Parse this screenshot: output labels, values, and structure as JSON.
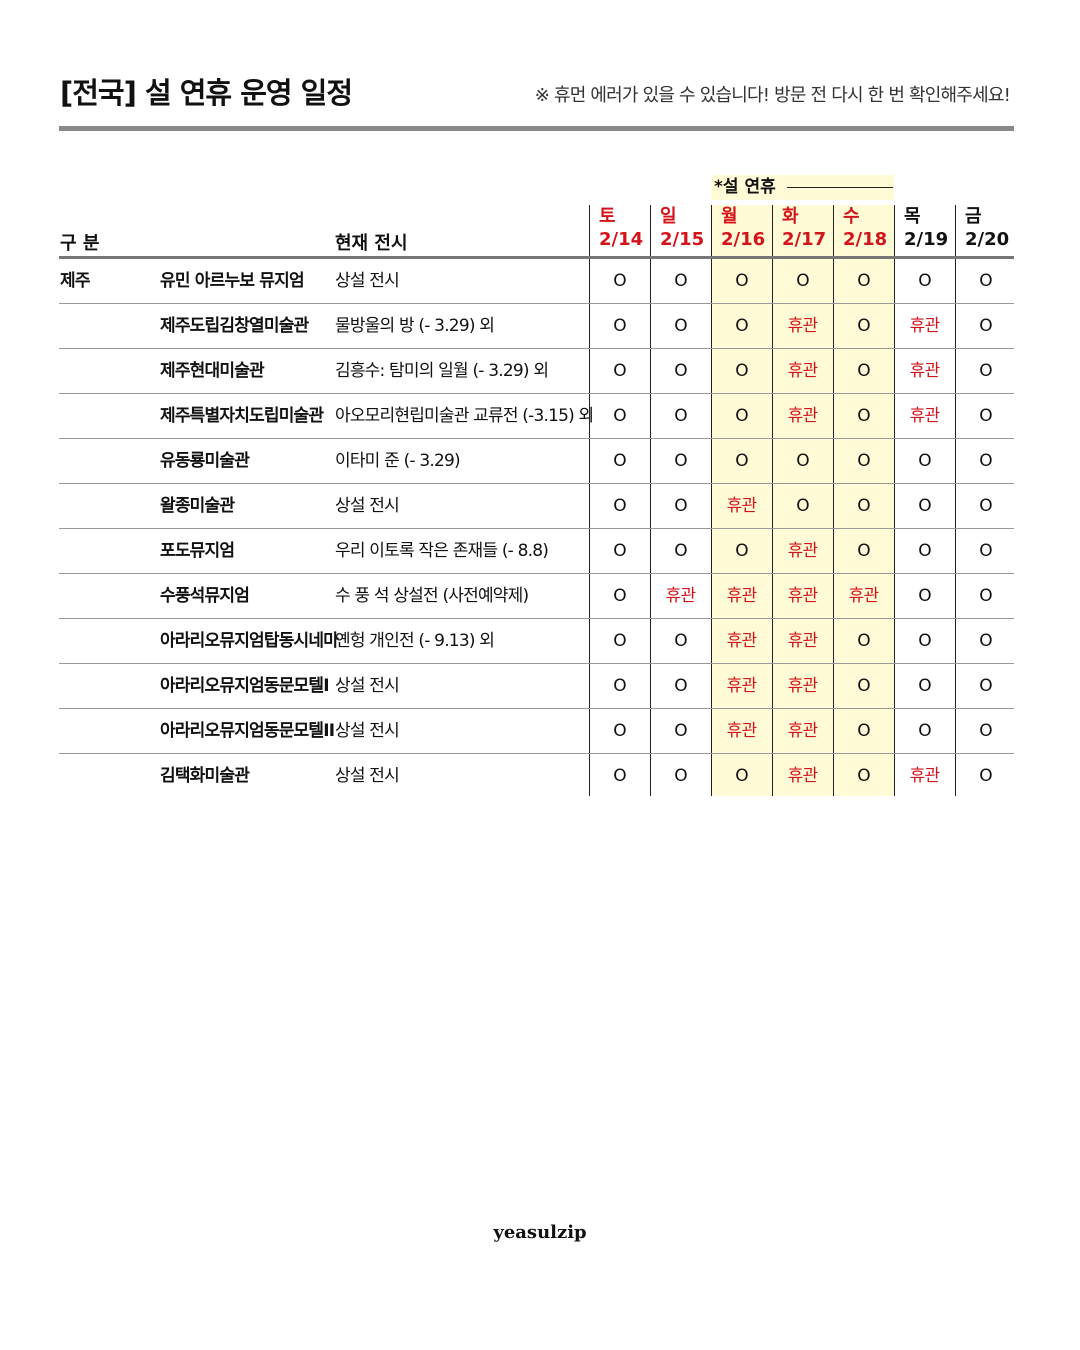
{
  "title": "[전국] 설 연휴 운영 일정",
  "notice": "※ 휴먼 에러가 있을 수 있습니다! 방문 전 다시 한 번 확인해주세요!",
  "holiday_label": "*설 연휴",
  "headers": {
    "category": "구 분",
    "exhibition": "현재 전시"
  },
  "days": [
    {
      "weekday": "토",
      "date": "2/14",
      "red": true
    },
    {
      "weekday": "일",
      "date": "2/15",
      "red": true
    },
    {
      "weekday": "월",
      "date": "2/16",
      "red": true
    },
    {
      "weekday": "화",
      "date": "2/17",
      "red": true
    },
    {
      "weekday": "수",
      "date": "2/18",
      "red": true
    },
    {
      "weekday": "목",
      "date": "2/19",
      "red": false
    },
    {
      "weekday": "금",
      "date": "2/20",
      "red": false
    }
  ],
  "colors": {
    "red": "#d3141b",
    "highlight": "#fffbd6"
  },
  "rows": [
    {
      "region": "제주",
      "museum": "유민 아르누보 뮤지엄",
      "exhibition": "상설 전시",
      "status": [
        "O",
        "O",
        "O",
        "O",
        "O",
        "O",
        "O"
      ]
    },
    {
      "region": "",
      "museum": "제주도립김창열미술관",
      "exhibition": "물방울의 방 (- 3.29) 외",
      "status": [
        "O",
        "O",
        "O",
        "휴관",
        "O",
        "휴관",
        "O"
      ]
    },
    {
      "region": "",
      "museum": "제주현대미술관",
      "exhibition": "김흥수: 탐미의 일월 (- 3.29) 외",
      "status": [
        "O",
        "O",
        "O",
        "휴관",
        "O",
        "휴관",
        "O"
      ]
    },
    {
      "region": "",
      "museum": "제주특별자치도립미술관",
      "exhibition": "아오모리현립미술관 교류전 (-3.15) 외",
      "status": [
        "O",
        "O",
        "O",
        "휴관",
        "O",
        "휴관",
        "O"
      ]
    },
    {
      "region": "",
      "museum": "유동룡미술관",
      "exhibition": "이타미 준 (- 3.29)",
      "status": [
        "O",
        "O",
        "O",
        "O",
        "O",
        "O",
        "O"
      ]
    },
    {
      "region": "",
      "museum": "왈종미술관",
      "exhibition": "상설 전시",
      "status": [
        "O",
        "O",
        "휴관",
        "O",
        "O",
        "O",
        "O"
      ]
    },
    {
      "region": "",
      "museum": "포도뮤지엄",
      "exhibition": "우리 이토록 작은 존재들 (- 8.8)",
      "status": [
        "O",
        "O",
        "O",
        "휴관",
        "O",
        "O",
        "O"
      ]
    },
    {
      "region": "",
      "museum": "수풍석뮤지엄",
      "exhibition": "수 풍 석 상설전 (사전예약제)",
      "status": [
        "O",
        "휴관",
        "휴관",
        "휴관",
        "휴관",
        "O",
        "O"
      ]
    },
    {
      "region": "",
      "museum": "아라리오뮤지엄탑동시네마",
      "exhibition": "옌헝 개인전 (- 9.13) 외",
      "status": [
        "O",
        "O",
        "휴관",
        "휴관",
        "O",
        "O",
        "O"
      ]
    },
    {
      "region": "",
      "museum": "아라리오뮤지엄동문모텔I",
      "exhibition": "상설 전시",
      "status": [
        "O",
        "O",
        "휴관",
        "휴관",
        "O",
        "O",
        "O"
      ]
    },
    {
      "region": "",
      "museum": "아라리오뮤지엄동문모텔II",
      "exhibition": "상설 전시",
      "status": [
        "O",
        "O",
        "휴관",
        "휴관",
        "O",
        "O",
        "O"
      ]
    },
    {
      "region": "",
      "museum": "김택화미술관",
      "exhibition": "상설 전시",
      "status": [
        "O",
        "O",
        "O",
        "휴관",
        "O",
        "휴관",
        "O"
      ]
    }
  ],
  "footer": "yeasulzip"
}
